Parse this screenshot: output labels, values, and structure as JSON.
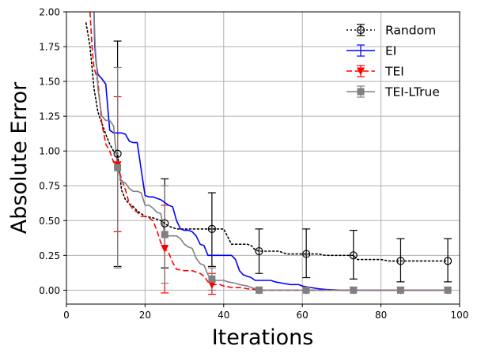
{
  "chart_data": {
    "type": "line",
    "title": "",
    "xlabel": "Iterations",
    "ylabel": "Absolute Error",
    "xlim": [
      0,
      100
    ],
    "ylim": [
      -0.1,
      2.0
    ],
    "xticks": [
      0,
      20,
      40,
      60,
      80,
      100
    ],
    "yticks": [
      0.0,
      0.25,
      0.5,
      0.75,
      1.0,
      1.25,
      1.5,
      1.75,
      2.0
    ],
    "xtick_labels": [
      "0",
      "20",
      "40",
      "60",
      "80",
      "100"
    ],
    "ytick_labels": [
      "0.00",
      "0.25",
      "0.50",
      "0.75",
      "1.00",
      "1.25",
      "1.50",
      "1.75",
      "2.00"
    ],
    "grid": true,
    "legend_position": "top-right",
    "series": [
      {
        "name": "Random",
        "color": "#000000",
        "dash": "dotted",
        "marker": "circle-open",
        "line": [
          [
            5,
            1.92
          ],
          [
            6,
            1.75
          ],
          [
            7,
            1.45
          ],
          [
            8,
            1.28
          ],
          [
            9,
            1.2
          ],
          [
            10,
            1.12
          ],
          [
            11,
            1.05
          ],
          [
            12,
            1.0
          ],
          [
            13,
            0.98
          ],
          [
            14,
            0.72
          ],
          [
            15,
            0.65
          ],
          [
            16,
            0.62
          ],
          [
            17,
            0.6
          ],
          [
            18,
            0.57
          ],
          [
            19,
            0.55
          ],
          [
            20,
            0.53
          ],
          [
            22,
            0.52
          ],
          [
            24,
            0.5
          ],
          [
            25,
            0.48
          ],
          [
            26,
            0.46
          ],
          [
            27,
            0.45
          ],
          [
            28,
            0.44
          ],
          [
            32,
            0.44
          ],
          [
            36,
            0.44
          ],
          [
            37,
            0.44
          ],
          [
            39,
            0.44
          ],
          [
            40,
            0.44
          ],
          [
            42,
            0.33
          ],
          [
            44,
            0.33
          ],
          [
            46,
            0.33
          ],
          [
            47,
            0.32
          ],
          [
            48,
            0.29
          ],
          [
            49,
            0.28
          ],
          [
            50,
            0.28
          ],
          [
            52,
            0.28
          ],
          [
            54,
            0.28
          ],
          [
            55,
            0.27
          ],
          [
            56,
            0.26
          ],
          [
            58,
            0.26
          ],
          [
            60,
            0.26
          ],
          [
            61,
            0.26
          ],
          [
            64,
            0.26
          ],
          [
            66,
            0.25
          ],
          [
            70,
            0.25
          ],
          [
            73,
            0.25
          ],
          [
            74,
            0.22
          ],
          [
            78,
            0.22
          ],
          [
            80,
            0.22
          ],
          [
            82,
            0.21
          ],
          [
            85,
            0.21
          ],
          [
            90,
            0.21
          ],
          [
            95,
            0.21
          ],
          [
            97,
            0.21
          ]
        ],
        "errorbars": [
          {
            "x": 13,
            "y": 0.98,
            "low": 0.17,
            "high": 1.79
          },
          {
            "x": 25,
            "y": 0.48,
            "low": 0.16,
            "high": 0.8
          },
          {
            "x": 37,
            "y": 0.44,
            "low": 0.17,
            "high": 0.7
          },
          {
            "x": 49,
            "y": 0.28,
            "low": 0.12,
            "high": 0.44
          },
          {
            "x": 61,
            "y": 0.26,
            "low": 0.09,
            "high": 0.44
          },
          {
            "x": 73,
            "y": 0.25,
            "low": 0.08,
            "high": 0.43
          },
          {
            "x": 85,
            "y": 0.21,
            "low": 0.06,
            "high": 0.37
          },
          {
            "x": 97,
            "y": 0.21,
            "low": 0.06,
            "high": 0.37
          }
        ]
      },
      {
        "name": "EI",
        "color": "#0000ff",
        "dash": "solid",
        "marker": "none",
        "line": [
          [
            7,
            2.0
          ],
          [
            7.2,
            1.75
          ],
          [
            7.6,
            1.62
          ],
          [
            8,
            1.55
          ],
          [
            9,
            1.52
          ],
          [
            10,
            1.48
          ],
          [
            11,
            1.15
          ],
          [
            12,
            1.13
          ],
          [
            13,
            1.13
          ],
          [
            14,
            1.13
          ],
          [
            15,
            1.12
          ],
          [
            16,
            1.07
          ],
          [
            17,
            1.06
          ],
          [
            18,
            1.06
          ],
          [
            19,
            0.87
          ],
          [
            20,
            0.68
          ],
          [
            21,
            0.67
          ],
          [
            22,
            0.67
          ],
          [
            23,
            0.66
          ],
          [
            24,
            0.65
          ],
          [
            25,
            0.63
          ],
          [
            26,
            0.61
          ],
          [
            27,
            0.6
          ],
          [
            28,
            0.5
          ],
          [
            29,
            0.44
          ],
          [
            30,
            0.43
          ],
          [
            31,
            0.43
          ],
          [
            32,
            0.42
          ],
          [
            33,
            0.39
          ],
          [
            34,
            0.33
          ],
          [
            35,
            0.32
          ],
          [
            36,
            0.25
          ],
          [
            38,
            0.25
          ],
          [
            42,
            0.25
          ],
          [
            43,
            0.22
          ],
          [
            44,
            0.14
          ],
          [
            45,
            0.11
          ],
          [
            46,
            0.1
          ],
          [
            47,
            0.09
          ],
          [
            48,
            0.07
          ],
          [
            50,
            0.07
          ],
          [
            52,
            0.07
          ],
          [
            53,
            0.06
          ],
          [
            55,
            0.05
          ],
          [
            57,
            0.04
          ],
          [
            59,
            0.04
          ],
          [
            60,
            0.03
          ],
          [
            62,
            0.02
          ],
          [
            64,
            0.01
          ],
          [
            66,
            0.005
          ],
          [
            70,
            0.0
          ],
          [
            97,
            0.0
          ]
        ],
        "errorbars": []
      },
      {
        "name": "TEI",
        "color": "#ff0000",
        "dash": "dashed",
        "marker": "triangle-down",
        "line": [
          [
            6,
            2.0
          ],
          [
            6.5,
            1.75
          ],
          [
            7,
            1.6
          ],
          [
            8,
            1.5
          ],
          [
            9,
            1.2
          ],
          [
            10,
            1.05
          ],
          [
            11,
            1.0
          ],
          [
            12,
            0.92
          ],
          [
            13,
            0.9
          ],
          [
            14,
            0.8
          ],
          [
            15,
            0.72
          ],
          [
            16,
            0.62
          ],
          [
            17,
            0.58
          ],
          [
            18,
            0.56
          ],
          [
            19,
            0.53
          ],
          [
            20,
            0.53
          ],
          [
            21,
            0.52
          ],
          [
            22,
            0.5
          ],
          [
            23,
            0.43
          ],
          [
            24,
            0.34
          ],
          [
            25,
            0.3
          ],
          [
            26,
            0.27
          ],
          [
            27,
            0.2
          ],
          [
            28,
            0.15
          ],
          [
            30,
            0.14
          ],
          [
            32,
            0.14
          ],
          [
            33,
            0.13
          ],
          [
            34,
            0.12
          ],
          [
            35,
            0.1
          ],
          [
            36,
            0.06
          ],
          [
            37,
            0.04
          ],
          [
            39,
            0.04
          ],
          [
            40,
            0.03
          ],
          [
            42,
            0.02
          ],
          [
            44,
            0.02
          ],
          [
            46,
            0.01
          ],
          [
            48,
            0.005
          ],
          [
            50,
            0.0
          ],
          [
            97,
            0.0
          ]
        ],
        "errorbars": [
          {
            "x": 13,
            "y": 0.9,
            "low": 0.42,
            "high": 1.39
          },
          {
            "x": 25,
            "y": 0.3,
            "low": -0.02,
            "high": 0.61
          },
          {
            "x": 37,
            "y": 0.04,
            "low": -0.03,
            "high": 0.12
          }
        ]
      },
      {
        "name": "TEI-LTrue",
        "color": "#808080",
        "dash": "solid",
        "marker": "square",
        "line": [
          [
            7,
            2.0
          ],
          [
            7.3,
            1.75
          ],
          [
            7.7,
            1.6
          ],
          [
            8,
            1.45
          ],
          [
            9,
            1.25
          ],
          [
            10,
            1.22
          ],
          [
            11,
            1.22
          ],
          [
            12,
            1.18
          ],
          [
            13,
            0.88
          ],
          [
            14,
            0.78
          ],
          [
            15,
            0.77
          ],
          [
            16,
            0.73
          ],
          [
            17,
            0.71
          ],
          [
            18,
            0.71
          ],
          [
            19,
            0.7
          ],
          [
            20,
            0.61
          ],
          [
            21,
            0.61
          ],
          [
            22,
            0.59
          ],
          [
            23,
            0.56
          ],
          [
            24,
            0.55
          ],
          [
            25,
            0.4
          ],
          [
            26,
            0.39
          ],
          [
            28,
            0.39
          ],
          [
            29,
            0.37
          ],
          [
            30,
            0.33
          ],
          [
            31,
            0.31
          ],
          [
            32,
            0.3
          ],
          [
            33,
            0.23
          ],
          [
            34,
            0.19
          ],
          [
            35,
            0.18
          ],
          [
            36,
            0.11
          ],
          [
            37,
            0.08
          ],
          [
            38,
            0.07
          ],
          [
            40,
            0.07
          ],
          [
            41,
            0.06
          ],
          [
            43,
            0.05
          ],
          [
            44,
            0.04
          ],
          [
            46,
            0.03
          ],
          [
            47,
            0.02
          ],
          [
            48,
            0.01
          ],
          [
            49,
            0.0
          ],
          [
            97,
            0.0
          ]
        ],
        "errorbars": [
          {
            "x": 13,
            "y": 0.88,
            "low": 0.16,
            "high": 1.6
          },
          {
            "x": 25,
            "y": 0.4,
            "low": 0.05,
            "high": 0.75
          },
          {
            "x": 37,
            "y": 0.08,
            "low": 0.0,
            "high": 0.16
          },
          {
            "x": 49,
            "y": 0.0,
            "low": 0.0,
            "high": 0.0
          },
          {
            "x": 61,
            "y": 0.0,
            "low": 0.0,
            "high": 0.0
          },
          {
            "x": 73,
            "y": 0.0,
            "low": 0.0,
            "high": 0.0
          },
          {
            "x": 85,
            "y": 0.0,
            "low": 0.0,
            "high": 0.0
          },
          {
            "x": 97,
            "y": 0.0,
            "low": 0.0,
            "high": 0.0
          }
        ]
      }
    ],
    "markers_shared": {
      "Random": [
        [
          13,
          0.98
        ],
        [
          25,
          0.48
        ],
        [
          37,
          0.44
        ],
        [
          49,
          0.28
        ],
        [
          61,
          0.26
        ],
        [
          73,
          0.25
        ],
        [
          85,
          0.21
        ],
        [
          97,
          0.21
        ]
      ],
      "TEI": [
        [
          13,
          0.9
        ],
        [
          25,
          0.3
        ],
        [
          37,
          0.04
        ],
        [
          49,
          0.0
        ],
        [
          61,
          0.0
        ],
        [
          73,
          0.0
        ],
        [
          85,
          0.0
        ],
        [
          97,
          0.0
        ]
      ],
      "TEI-LTrue": [
        [
          13,
          0.88
        ],
        [
          25,
          0.4
        ],
        [
          37,
          0.08
        ],
        [
          49,
          0.0
        ],
        [
          61,
          0.0
        ],
        [
          73,
          0.0
        ],
        [
          85,
          0.0
        ],
        [
          97,
          0.0
        ]
      ]
    }
  }
}
